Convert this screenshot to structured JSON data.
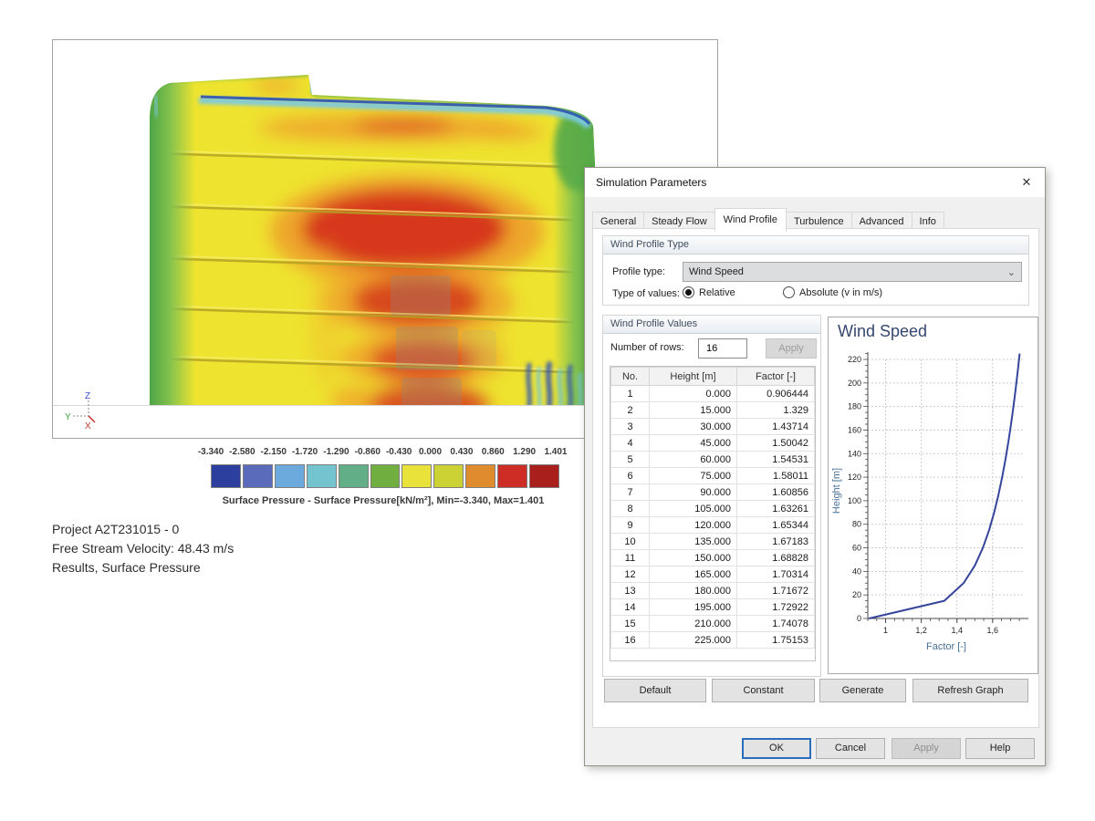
{
  "viewer": {
    "axis_triad": {
      "x": "X",
      "y": "Y",
      "z": "Z"
    },
    "legend": {
      "tick_values": [
        "-3.340",
        "-2.580",
        "-2.150",
        "-1.720",
        "-1.290",
        "-0.860",
        "-0.430",
        "0.000",
        "0.430",
        "0.860",
        "1.290",
        "1.401"
      ],
      "swatch_colors": [
        "#2c3f9e",
        "#5a6bbb",
        "#6caade",
        "#74c4cf",
        "#62ae86",
        "#70ae3f",
        "#e8e23a",
        "#ccd234",
        "#df8c2e",
        "#cd2d24",
        "#a81f1c"
      ],
      "caption": "Surface Pressure  - Surface Pressure[kN/m²], Min=-3.340, Max=1.401"
    },
    "info_lines": {
      "line1": "Project A2T231015 - 0",
      "line2": "Free Stream Velocity: 48.43 m/s",
      "line3": "Results, Surface Pressure"
    }
  },
  "dialog": {
    "title": "Simulation Parameters",
    "close_label": "✕",
    "tabs": [
      {
        "label": "General"
      },
      {
        "label": "Steady Flow"
      },
      {
        "label": "Wind Profile"
      },
      {
        "label": "Turbulence"
      },
      {
        "label": "Advanced"
      },
      {
        "label": "Info"
      }
    ],
    "profile_group": {
      "title": "Wind Profile Type",
      "profile_type_label": "Profile type:",
      "profile_type_value": "Wind Speed",
      "dropdown_chevron": "⌄",
      "type_of_values_label": "Type of values:",
      "radio_relative": "Relative",
      "radio_absolute": "Absolute (v in m/s)"
    },
    "values_group": {
      "title": "Wind Profile Values",
      "rows_label": "Number of rows:",
      "rows_value": "16",
      "apply_label": "Apply",
      "table": {
        "headers": [
          "No.",
          "Height [m]",
          "Factor [-]"
        ],
        "rows": [
          [
            "1",
            "0.000",
            "0.906444"
          ],
          [
            "2",
            "15.000",
            "1.329"
          ],
          [
            "3",
            "30.000",
            "1.43714"
          ],
          [
            "4",
            "45.000",
            "1.50042"
          ],
          [
            "5",
            "60.000",
            "1.54531"
          ],
          [
            "6",
            "75.000",
            "1.58011"
          ],
          [
            "7",
            "90.000",
            "1.60856"
          ],
          [
            "8",
            "105.000",
            "1.63261"
          ],
          [
            "9",
            "120.000",
            "1.65344"
          ],
          [
            "10",
            "135.000",
            "1.67183"
          ],
          [
            "11",
            "150.000",
            "1.68828"
          ],
          [
            "12",
            "165.000",
            "1.70314"
          ],
          [
            "13",
            "180.000",
            "1.71672"
          ],
          [
            "14",
            "195.000",
            "1.72922"
          ],
          [
            "15",
            "210.000",
            "1.74078"
          ],
          [
            "16",
            "225.000",
            "1.75153"
          ]
        ]
      }
    },
    "action_buttons": [
      "Default",
      "Constant",
      "Generate",
      "Refresh Graph"
    ],
    "footer_buttons": [
      "OK",
      "Cancel",
      "Apply",
      "Help"
    ]
  },
  "chart_data": {
    "type": "line",
    "title": "Wind Speed",
    "xlabel": "Factor [-]",
    "ylabel": "Height [m]",
    "x": [
      0.906444,
      1.329,
      1.43714,
      1.50042,
      1.54531,
      1.58011,
      1.60856,
      1.63261,
      1.65344,
      1.67183,
      1.68828,
      1.70314,
      1.71672,
      1.72922,
      1.74078,
      1.75153
    ],
    "y": [
      0,
      15,
      30,
      45,
      60,
      75,
      90,
      105,
      120,
      135,
      150,
      165,
      180,
      195,
      210,
      225
    ],
    "xlim": [
      0.9,
      1.78
    ],
    "ylim": [
      0,
      230
    ],
    "xticks": [
      {
        "v": 1,
        "label": "1"
      },
      {
        "v": 1.2,
        "label": "1,2"
      },
      {
        "v": 1.4,
        "label": "1,4"
      },
      {
        "v": 1.6,
        "label": "1,6"
      }
    ],
    "yticks": [
      0,
      20,
      40,
      60,
      80,
      100,
      120,
      140,
      160,
      180,
      200,
      220
    ],
    "grid": true,
    "legend_position": "none",
    "line_color": "#36459c",
    "axis_label_color": "#4a6f96"
  }
}
